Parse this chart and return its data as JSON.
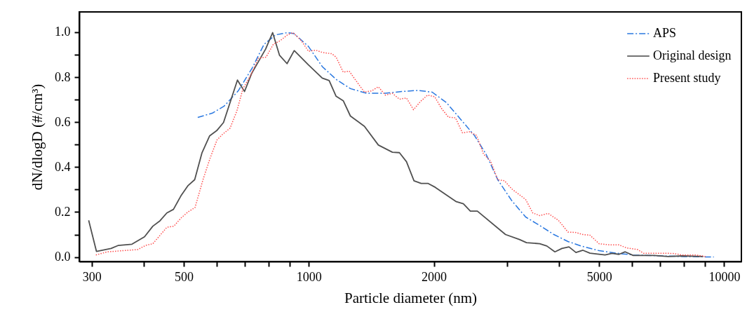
{
  "chart_data": {
    "type": "line",
    "xlabel": "Particle diameter (nm)",
    "ylabel": "dN/dlogD (#/cm³)",
    "log": "x",
    "grid": false,
    "legend": "top right",
    "marker": "none",
    "xlim": [
      280,
      11000
    ],
    "ylim": [
      -0.02,
      1.09
    ],
    "xticks": [
      300,
      {
        "value": 400,
        "label": null
      },
      500,
      {
        "value": 600,
        "label": null
      },
      {
        "value": 700,
        "label": null
      },
      {
        "value": 800,
        "label": null
      },
      {
        "value": 900,
        "label": null
      },
      1000,
      2000,
      {
        "value": 3000,
        "label": null
      },
      {
        "value": 4000,
        "label": null
      },
      5000,
      {
        "value": 6000,
        "label": null
      },
      {
        "value": 7000,
        "label": null
      },
      {
        "value": 8000,
        "label": null
      },
      {
        "value": 9000,
        "label": null
      },
      10000
    ],
    "yticks": [
      {
        "value": 0,
        "label": "0.0"
      },
      {
        "value": 0.1,
        "label": null
      },
      {
        "value": 0.2,
        "label": "0.2"
      },
      {
        "value": 0.3,
        "label": null
      },
      {
        "value": 0.4,
        "label": "0.4"
      },
      {
        "value": 0.5,
        "label": null
      },
      {
        "value": 0.6,
        "label": "0.6"
      },
      {
        "value": 0.7,
        "label": null
      },
      {
        "value": 0.8,
        "label": "0.8"
      },
      {
        "value": 0.9,
        "label": null
      },
      {
        "value": 1,
        "label": "1.0"
      }
    ],
    "series": [
      {
        "name": "APS",
        "color": "#2a78e0",
        "line_style": "dashed",
        "x": [
          540,
          586,
          625,
          676,
          731,
          780,
          832,
          888,
          922,
          998,
          1077,
          1163,
          1259,
          1377,
          1528,
          1673,
          1834,
          1982,
          2143,
          2316,
          2503,
          2670,
          2849,
          3079,
          3326,
          3597,
          3890,
          4206,
          4523,
          5000,
          5500,
          6040,
          7060,
          8040,
          9440
        ],
        "values": [
          0.621,
          0.64,
          0.671,
          0.739,
          0.842,
          0.946,
          0.988,
          0.998,
          0.993,
          0.936,
          0.847,
          0.79,
          0.749,
          0.728,
          0.728,
          0.736,
          0.741,
          0.733,
          0.687,
          0.614,
          0.541,
          0.458,
          0.344,
          0.251,
          0.178,
          0.14,
          0.1,
          0.069,
          0.049,
          0.028,
          0.017,
          0.009,
          0.005,
          0.002,
          0
        ]
      },
      {
        "name": "Original design",
        "color": "#505050",
        "line_style": "solid",
        "x": [
          295,
          308,
          334,
          347,
          375,
          402,
          421,
          438,
          455,
          472,
          492,
          512,
          531,
          553,
          577,
          600,
          623,
          673,
          700,
          728,
          787,
          818,
          850,
          886,
          922,
          997,
          1077,
          1119,
          1163,
          1210,
          1259,
          1361,
          1470,
          1589,
          1652,
          1718,
          1791,
          1864,
          1938,
          2015,
          2265,
          2355,
          2448,
          2545,
          2975,
          3215,
          3342,
          3597,
          3741,
          3912,
          4067,
          4229,
          4396,
          4570,
          4752,
          5166,
          5370,
          5580,
          5776,
          6040,
          6790,
          7330,
          7925,
          8910
        ],
        "values": [
          0.163,
          0.025,
          0.038,
          0.051,
          0.057,
          0.09,
          0.137,
          0.161,
          0.196,
          0.212,
          0.272,
          0.318,
          0.344,
          0.464,
          0.539,
          0.562,
          0.598,
          0.787,
          0.736,
          0.816,
          0.925,
          0.998,
          0.897,
          0.86,
          0.918,
          0.855,
          0.796,
          0.785,
          0.715,
          0.695,
          0.627,
          0.581,
          0.498,
          0.466,
          0.464,
          0.424,
          0.339,
          0.327,
          0.327,
          0.31,
          0.246,
          0.237,
          0.204,
          0.204,
          0.1,
          0.078,
          0.064,
          0.059,
          0.049,
          0.023,
          0.038,
          0.045,
          0.02,
          0.03,
          0.017,
          0.009,
          0.016,
          0.012,
          0.023,
          0.007,
          0.007,
          0.002,
          0.005,
          0.002
        ]
      },
      {
        "name": "Present study",
        "color": "#ff4d4d",
        "line_style": "dotted",
        "x": [
          307,
          327,
          387,
          405,
          421,
          455,
          473,
          492,
          512,
          532,
          556,
          578,
          601,
          621,
          646,
          671,
          694,
          726,
          755,
          789,
          821,
          853,
          888,
          916,
          959,
          998,
          1038,
          1077,
          1136,
          1163,
          1210,
          1250,
          1292,
          1361,
          1416,
          1470,
          1528,
          1589,
          1652,
          1718,
          1786,
          1857,
          1931,
          2008,
          2086,
          2168,
          2254,
          2343,
          2436,
          2533,
          2633,
          2737,
          2849,
          2958,
          3079,
          3326,
          3460,
          3597,
          3767,
          3990,
          4206,
          4396,
          4570,
          4752,
          5000,
          5290,
          5580,
          5810,
          6190,
          6390,
          6870,
          7530,
          7925,
          8570,
          9020
        ],
        "values": [
          0.009,
          0.023,
          0.033,
          0.052,
          0.059,
          0.132,
          0.137,
          0.173,
          0.201,
          0.22,
          0.344,
          0.438,
          0.521,
          0.547,
          0.573,
          0.65,
          0.749,
          0.811,
          0.884,
          0.889,
          0.946,
          0.962,
          0.988,
          0.998,
          0.962,
          0.915,
          0.92,
          0.91,
          0.904,
          0.889,
          0.822,
          0.827,
          0.79,
          0.733,
          0.739,
          0.757,
          0.72,
          0.728,
          0.702,
          0.707,
          0.655,
          0.692,
          0.72,
          0.713,
          0.661,
          0.622,
          0.619,
          0.552,
          0.557,
          0.541,
          0.458,
          0.427,
          0.344,
          0.339,
          0.303,
          0.256,
          0.196,
          0.184,
          0.194,
          0.163,
          0.111,
          0.109,
          0.1,
          0.097,
          0.059,
          0.054,
          0.054,
          0.041,
          0.033,
          0.017,
          0.017,
          0.016,
          0.009,
          0.009,
          0.002
        ]
      }
    ]
  }
}
